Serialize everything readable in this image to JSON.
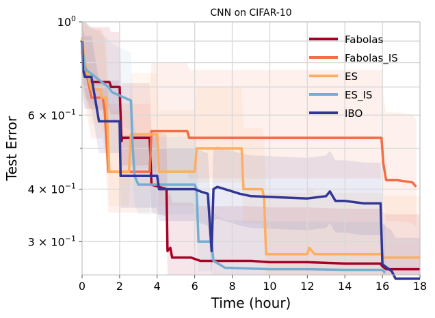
{
  "chart_data": {
    "type": "line",
    "title": "CNN on CIFAR-10",
    "xlabel": "Time (hour)",
    "ylabel": "Test Error",
    "yscale": "log",
    "xlim": [
      0,
      18
    ],
    "ylim": [
      0.25,
      1.0
    ],
    "grid": true,
    "legend_position": "top-right",
    "xticks": [
      0,
      2,
      4,
      6,
      8,
      10,
      12,
      14,
      16,
      18
    ],
    "xtick_labels": [
      "0",
      "2",
      "4",
      "6",
      "8",
      "10",
      "12",
      "14",
      "16",
      "18"
    ],
    "yticks": [
      {
        "value": 1.0,
        "label": "10",
        "sup": "0"
      },
      {
        "value": 0.6,
        "label": "6 × 10",
        "sup": "−1"
      },
      {
        "value": 0.4,
        "label": "4 × 10",
        "sup": "−1"
      },
      {
        "value": 0.3,
        "label": "3 × 10",
        "sup": "−1"
      }
    ],
    "series": [
      {
        "name": "Fabolas",
        "color": "#a50026",
        "x": [
          0,
          0.15,
          0.4,
          1.45,
          1.55,
          2.0,
          2.1,
          2.15,
          2.3,
          3.6,
          3.7,
          4.5,
          4.55,
          4.7,
          4.8,
          5.8,
          6.3,
          9.0,
          10.0,
          12.0,
          14.0,
          15.9,
          16.0,
          16.1,
          16.2,
          18.0
        ],
        "y": [
          0.9,
          0.79,
          0.72,
          0.72,
          0.7,
          0.7,
          0.52,
          0.53,
          0.53,
          0.53,
          0.41,
          0.4,
          0.285,
          0.29,
          0.275,
          0.275,
          0.27,
          0.27,
          0.268,
          0.268,
          0.266,
          0.266,
          0.262,
          0.26,
          0.258,
          0.258
        ]
      },
      {
        "name": "Fabolas_IS",
        "color": "#f46d43",
        "x": [
          0,
          0.15,
          0.5,
          1.1,
          1.2,
          1.4,
          1.5,
          2.3,
          3.6,
          3.7,
          5.6,
          5.7,
          6.3,
          9.0,
          10.0,
          14.0,
          15.95,
          16.05,
          16.2,
          16.8,
          17.6,
          17.8
        ],
        "y": [
          0.85,
          0.79,
          0.66,
          0.66,
          0.62,
          0.44,
          0.44,
          0.44,
          0.44,
          0.55,
          0.55,
          0.53,
          0.53,
          0.53,
          0.53,
          0.53,
          0.53,
          0.46,
          0.42,
          0.42,
          0.415,
          0.405
        ]
      },
      {
        "name": "ES",
        "color": "#fdae61",
        "x": [
          0,
          0.15,
          0.5,
          1.0,
          1.05,
          1.3,
          1.45,
          2.3,
          2.5,
          2.6,
          3.5,
          4.0,
          4.1,
          4.3,
          6.0,
          6.1,
          8.3,
          8.5,
          8.6,
          9.6,
          9.7,
          9.8,
          12.0,
          12.1,
          12.4,
          13.3,
          14.0,
          16.0,
          16.05,
          18.0
        ],
        "y": [
          0.92,
          0.8,
          0.69,
          0.69,
          0.66,
          0.66,
          0.44,
          0.44,
          0.44,
          0.54,
          0.54,
          0.54,
          0.44,
          0.44,
          0.44,
          0.5,
          0.5,
          0.5,
          0.4,
          0.4,
          0.38,
          0.28,
          0.28,
          0.29,
          0.28,
          0.28,
          0.28,
          0.28,
          0.275,
          0.275
        ]
      },
      {
        "name": "ES_IS",
        "color": "#74add1",
        "x": [
          0,
          0.1,
          0.2,
          1.4,
          1.6,
          2.6,
          2.7,
          2.8,
          3.0,
          4.1,
          4.2,
          6.0,
          6.1,
          6.2,
          6.9,
          7.0,
          7.5,
          7.6,
          10.0,
          12.0,
          14.0,
          16.0,
          16.15
        ],
        "y": [
          0.9,
          0.8,
          0.77,
          0.7,
          0.68,
          0.65,
          0.5,
          0.43,
          0.41,
          0.41,
          0.41,
          0.41,
          0.4,
          0.3,
          0.3,
          0.27,
          0.262,
          0.26,
          0.258,
          0.258,
          0.257,
          0.257,
          0.253
        ]
      },
      {
        "name": "IBO",
        "color": "#313695",
        "x": [
          0,
          0.05,
          0.15,
          0.5,
          0.9,
          1.0,
          2.0,
          2.05,
          2.6,
          3.0,
          4.0,
          4.1,
          4.4,
          5.0,
          6.0,
          6.3,
          6.7,
          6.9,
          7.0,
          7.2,
          7.6,
          8.0,
          8.4,
          9.0,
          12.0,
          13.0,
          13.2,
          13.5,
          14.0,
          15.0,
          15.9,
          16.0,
          16.5,
          16.7,
          18.0
        ],
        "y": [
          0.9,
          0.77,
          0.74,
          0.74,
          0.58,
          0.58,
          0.58,
          0.43,
          0.43,
          0.43,
          0.43,
          0.4,
          0.4,
          0.4,
          0.4,
          0.395,
          0.39,
          0.285,
          0.4,
          0.405,
          0.4,
          0.395,
          0.39,
          0.385,
          0.38,
          0.385,
          0.395,
          0.375,
          0.375,
          0.37,
          0.37,
          0.265,
          0.255,
          0.245,
          0.245
        ]
      }
    ]
  }
}
